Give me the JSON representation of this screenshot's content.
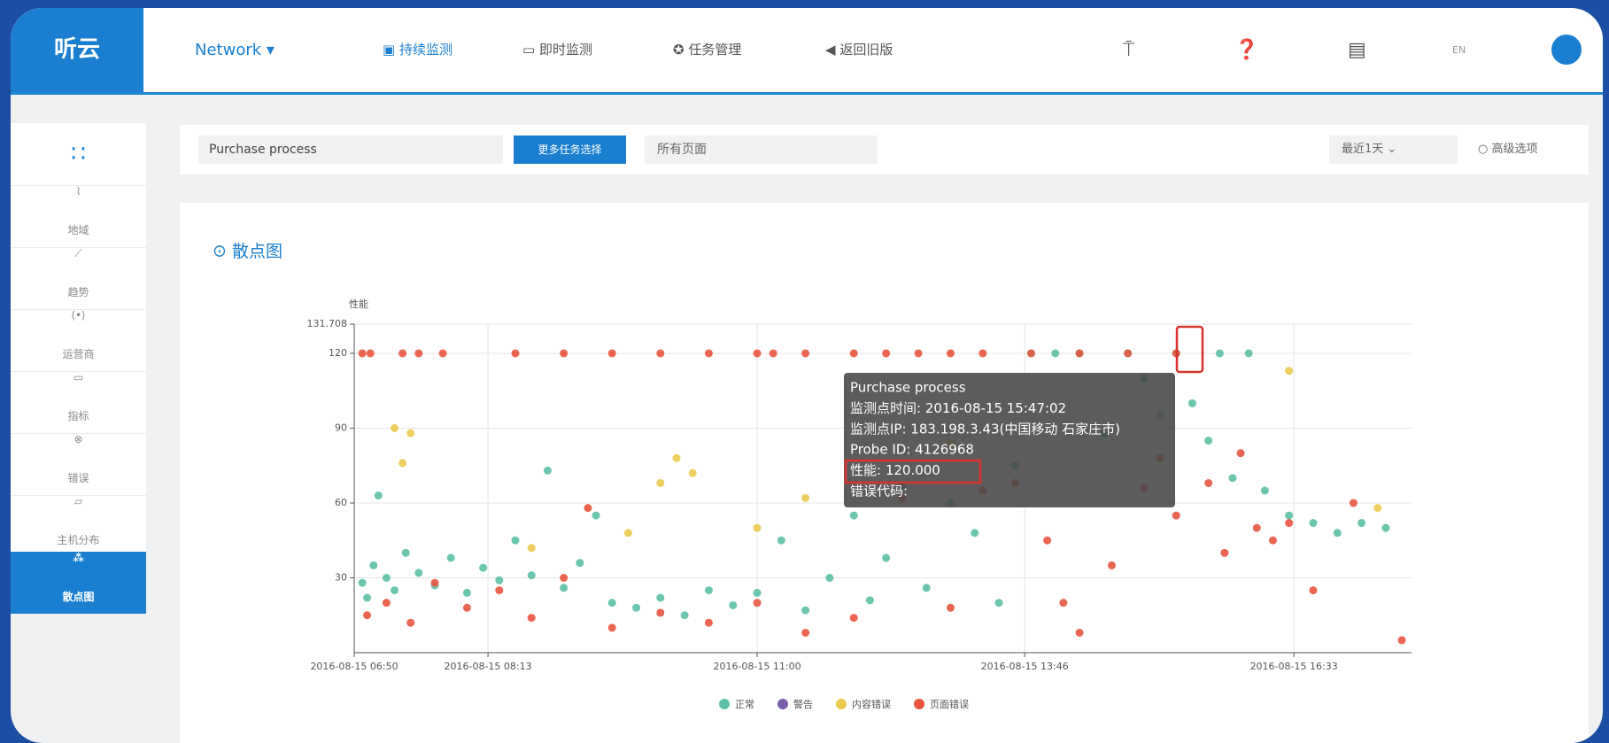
{
  "nav": {
    "brand": "听云",
    "product": "Network",
    "items": [
      "持续监测",
      "即时监测",
      "任务管理",
      "返回旧版"
    ],
    "lang": "EN"
  },
  "sidebar": [
    "地域",
    "趋势",
    "运营商",
    "指标",
    "错误",
    "主机分布",
    "散点图"
  ],
  "filter": {
    "task": "Purchase process",
    "more": "更多任务选择",
    "page": "所有页面",
    "range": "最近1天",
    "advanced": "高级选项"
  },
  "tooltip": [
    "Purchase process",
    "监测点时间: 2016-08-15 15:47:02",
    "监测点IP: 183.198.3.43(中国移动 石家庄市)",
    "Probe ID: 4126968",
    "性能: 120.000",
    "错误代码:"
  ],
  "chart_data": {
    "type": "scatter",
    "title": "散点图",
    "ylabel": "性能",
    "xlim": [
      "2016-08-15 06:50",
      "2016-08-15 17:46"
    ],
    "xticks": [
      "2016-08-15 06:50",
      "2016-08-15 08:13",
      "2016-08-15 11:00",
      "2016-08-15 13:46",
      "2016-08-15 16:33"
    ],
    "ylim": [
      0,
      131.708
    ],
    "yticks": [
      30,
      60,
      90,
      120,
      131.708
    ],
    "grid": true,
    "series": [
      {
        "name": "正常",
        "color": "#5cc0a5",
        "x": [
          "2016-08-15 06:55",
          "2016-08-15 06:58",
          "2016-08-15 07:02",
          "2016-08-15 07:05",
          "2016-08-15 07:10",
          "2016-08-15 07:15",
          "2016-08-15 07:22",
          "2016-08-15 07:30",
          "2016-08-15 07:40",
          "2016-08-15 07:50",
          "2016-08-15 08:00",
          "2016-08-15 08:10",
          "2016-08-15 08:20",
          "2016-08-15 08:30",
          "2016-08-15 08:40",
          "2016-08-15 08:50",
          "2016-08-15 09:00",
          "2016-08-15 09:10",
          "2016-08-15 09:20",
          "2016-08-15 09:30",
          "2016-08-15 09:45",
          "2016-08-15 10:00",
          "2016-08-15 10:15",
          "2016-08-15 10:30",
          "2016-08-15 10:45",
          "2016-08-15 11:00",
          "2016-08-15 11:15",
          "2016-08-15 11:30",
          "2016-08-15 11:45",
          "2016-08-15 12:00",
          "2016-08-15 12:10",
          "2016-08-15 12:20",
          "2016-08-15 12:30",
          "2016-08-15 12:45",
          "2016-08-15 13:00",
          "2016-08-15 13:15",
          "2016-08-15 13:30",
          "2016-08-15 13:40",
          "2016-08-15 13:50",
          "2016-08-15 14:05",
          "2016-08-15 14:20",
          "2016-08-15 14:35",
          "2016-08-15 14:50",
          "2016-08-15 15:00",
          "2016-08-15 15:10",
          "2016-08-15 15:20",
          "2016-08-15 15:30",
          "2016-08-15 15:40",
          "2016-08-15 15:47",
          "2016-08-15 15:55",
          "2016-08-15 16:05",
          "2016-08-15 16:15",
          "2016-08-15 16:30",
          "2016-08-15 16:45",
          "2016-08-15 17:00",
          "2016-08-15 17:15",
          "2016-08-15 17:30"
        ],
        "values": [
          28,
          22,
          35,
          63,
          30,
          25,
          40,
          32,
          27,
          38,
          24,
          34,
          29,
          45,
          31,
          73,
          26,
          36,
          55,
          20,
          18,
          22,
          15,
          25,
          19,
          24,
          45,
          17,
          30,
          55,
          21,
          38,
          67,
          26,
          60,
          48,
          20,
          75,
          120,
          120,
          120,
          88,
          120,
          110,
          95,
          120,
          100,
          85,
          120,
          70,
          120,
          65,
          55,
          52,
          48,
          52,
          50
        ]
      },
      {
        "name": "警告",
        "color": "#7a5fb0",
        "x": [],
        "values": []
      },
      {
        "name": "内容错误",
        "color": "#ecc94b",
        "x": [
          "2016-08-15 07:15",
          "2016-08-15 07:20",
          "2016-08-15 07:25",
          "2016-08-15 08:40",
          "2016-08-15 09:40",
          "2016-08-15 10:00",
          "2016-08-15 10:10",
          "2016-08-15 10:20",
          "2016-08-15 11:00",
          "2016-08-15 11:30",
          "2016-08-15 13:00",
          "2016-08-15 16:30",
          "2016-08-15 17:25"
        ],
        "values": [
          90,
          76,
          88,
          42,
          48,
          68,
          78,
          72,
          50,
          62,
          84,
          113,
          58
        ]
      },
      {
        "name": "页面错误",
        "color": "#e8553d",
        "x": [
          "2016-08-15 06:55",
          "2016-08-15 07:00",
          "2016-08-15 07:20",
          "2016-08-15 07:30",
          "2016-08-15 07:45",
          "2016-08-15 08:30",
          "2016-08-15 09:00",
          "2016-08-15 09:30",
          "2016-08-15 10:00",
          "2016-08-15 10:30",
          "2016-08-15 11:00",
          "2016-08-15 11:10",
          "2016-08-15 11:30",
          "2016-08-15 12:00",
          "2016-08-15 12:20",
          "2016-08-15 12:40",
          "2016-08-15 13:00",
          "2016-08-15 13:20",
          "2016-08-15 13:50",
          "2016-08-15 14:20",
          "2016-08-15 14:50",
          "2016-08-15 15:20",
          "2016-08-15 06:58",
          "2016-08-15 07:10",
          "2016-08-15 07:25",
          "2016-08-15 07:40",
          "2016-08-15 08:00",
          "2016-08-15 08:20",
          "2016-08-15 08:40",
          "2016-08-15 09:00",
          "2016-08-15 09:15",
          "2016-08-15 09:30",
          "2016-08-15 10:00",
          "2016-08-15 10:30",
          "2016-08-15 11:00",
          "2016-08-15 11:30",
          "2016-08-15 12:00",
          "2016-08-15 12:30",
          "2016-08-15 13:00",
          "2016-08-15 13:20",
          "2016-08-15 13:40",
          "2016-08-15 14:00",
          "2016-08-15 14:10",
          "2016-08-15 14:20",
          "2016-08-15 14:40",
          "2016-08-15 15:00",
          "2016-08-15 15:10",
          "2016-08-15 15:20",
          "2016-08-15 15:40",
          "2016-08-15 15:50",
          "2016-08-15 16:00",
          "2016-08-15 16:10",
          "2016-08-15 16:20",
          "2016-08-15 16:30",
          "2016-08-15 16:45",
          "2016-08-15 17:10",
          "2016-08-15 17:40"
        ],
        "values": [
          120,
          120,
          120,
          120,
          120,
          120,
          120,
          120,
          120,
          120,
          120,
          120,
          120,
          120,
          120,
          120,
          120,
          120,
          120,
          120,
          120,
          120,
          15,
          20,
          12,
          28,
          18,
          25,
          14,
          30,
          58,
          10,
          16,
          12,
          20,
          8,
          14,
          62,
          18,
          65,
          68,
          45,
          20,
          8,
          35,
          66,
          78,
          55,
          68,
          40,
          80,
          50,
          45,
          52,
          25,
          60,
          5
        ]
      }
    ]
  }
}
